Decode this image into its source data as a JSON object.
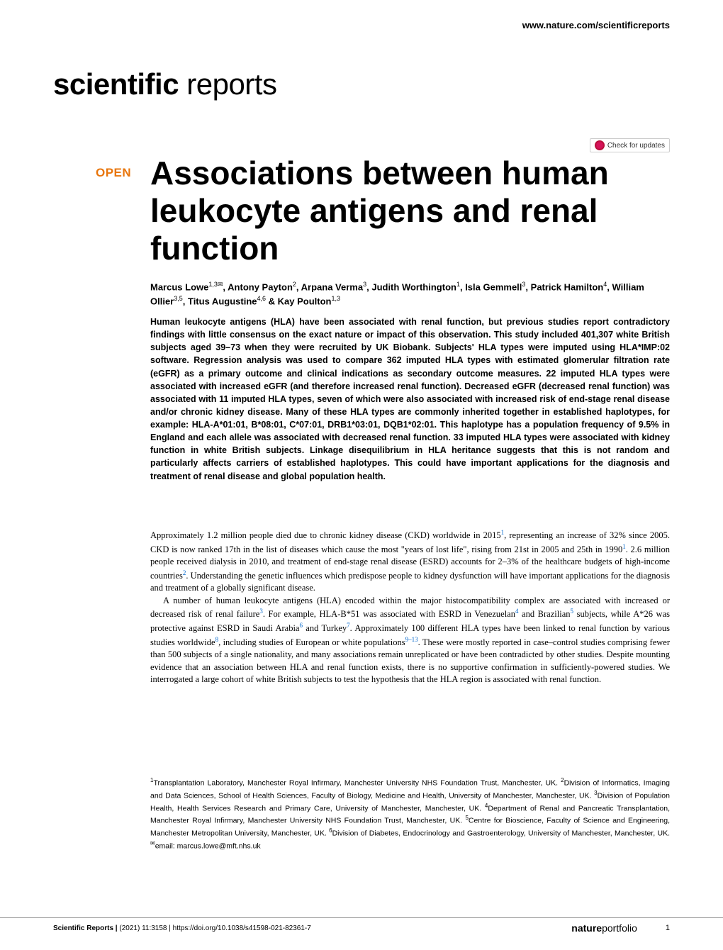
{
  "header": {
    "url": "www.nature.com/scientificreports"
  },
  "journal_logo": {
    "bold_part": "scientific",
    "light_part": " reports"
  },
  "check_updates_label": "Check for updates",
  "open_badge": "OPEN",
  "title": "Associations between human leukocyte antigens and renal function",
  "authors_html": "Marcus Lowe<sup>1,3✉</sup>, Antony Payton<sup>2</sup>, Arpana Verma<sup>3</sup>, Judith Worthington<sup>1</sup>, Isla Gemmell<sup>3</sup>, Patrick Hamilton<sup>4</sup>, William Ollier<sup>3,5</sup>, Titus Augustine<sup>4,6</sup> & Kay Poulton<sup>1,3</sup>",
  "abstract": "Human leukocyte antigens (HLA) have been associated with renal function, but previous studies report contradictory findings with little consensus on the exact nature or impact of this observation. This study included 401,307 white British subjects aged 39–73 when they were recruited by UK Biobank. Subjects' HLA types were imputed using HLA*IMP:02 software. Regression analysis was used to compare 362 imputed HLA types with estimated glomerular filtration rate (eGFR) as a primary outcome and clinical indications as secondary outcome measures. 22 imputed HLA types were associated with increased eGFR (and therefore increased renal function). Decreased eGFR (decreased renal function) was associated with 11 imputed HLA types, seven of which were also associated with increased risk of end-stage renal disease and/or chronic kidney disease. Many of these HLA types are commonly inherited together in established haplotypes, for example: HLA-A*01:01, B*08:01, C*07:01, DRB1*03:01, DQB1*02:01. This haplotype has a population frequency of 9.5% in England and each allele was associated with decreased renal function. 33 imputed HLA types were associated with kidney function in white British subjects. Linkage disequilibrium in HLA heritance suggests that this is not random and particularly affects carriers of established haplotypes. This could have important applications for the diagnosis and treatment of renal disease and global population health.",
  "body_paragraphs": [
    "Approximately 1.2 million people died due to chronic kidney disease (CKD) worldwide in 2015<sup class=\"ref-sup\">1</sup>, representing an increase of 32% since 2005. CKD is now ranked 17th in the list of diseases which cause the most \"years of lost life\", rising from 21st in 2005 and 25th in 1990<sup class=\"ref-sup\">1</sup>. 2.6 million people received dialysis in 2010, and treatment of end-stage renal disease (ESRD) accounts for 2–3% of the healthcare budgets of high-income countries<sup class=\"ref-sup\">2</sup>. Understanding the genetic influences which predispose people to kidney dysfunction will have important applications for the diagnosis and treatment of a globally significant disease.",
    "A number of human leukocyte antigens (HLA) encoded within the major histocompatibility complex are associated with increased or decreased risk of renal failure<sup class=\"ref-sup\">3</sup>. For example, HLA-B*51 was associated with ESRD in Venezuelan<sup class=\"ref-sup\">4</sup> and Brazilian<sup class=\"ref-sup\">5</sup> subjects, while A*26 was protective against ESRD in Saudi Arabia<sup class=\"ref-sup\">6</sup> and Turkey<sup class=\"ref-sup\">7</sup>. Approximately 100 different HLA types have been linked to renal function by various studies worldwide<sup class=\"ref-sup\">8</sup>, including studies of European or white populations<sup class=\"ref-sup\">9–13</sup>. These were mostly reported in case–control studies comprising fewer than 500 subjects of a single nationality, and many associations remain unreplicated or have been contradicted by other studies. Despite mounting evidence that an association between HLA and renal function exists, there is no supportive confirmation in sufficiently-powered studies. We interrogated a large cohort of white British subjects to test the hypothesis that the HLA region is associated with renal function."
  ],
  "affiliations": "<sup>1</sup>Transplantation Laboratory, Manchester Royal Infirmary, Manchester University NHS Foundation Trust, Manchester, UK. <sup>2</sup>Division of Informatics, Imaging and Data Sciences, School of Health Sciences, Faculty of Biology, Medicine and Health, University of Manchester, Manchester, UK. <sup>3</sup>Division of Population Health, Health Services Research and Primary Care, University of Manchester, Manchester, UK. <sup>4</sup>Department of Renal and Pancreatic Transplantation, Manchester Royal Infirmary, Manchester University NHS Foundation Trust, Manchester, UK. <sup>5</sup>Centre for Bioscience, Faculty of Science and Engineering, Manchester Metropolitan University, Manchester, UK. <sup>6</sup>Division of Diabetes, Endocrinology and Gastroenterology, University of Manchester, Manchester, UK. <sup>✉</sup>email: marcus.lowe@mft.nhs.uk",
  "footer": {
    "journal": "Scientific Reports |",
    "citation": "        (2021) 11:3158",
    "doi": "| https://doi.org/10.1038/s41598-021-82361-7",
    "portfolio_bold": "nature",
    "portfolio_light": "portfolio",
    "page_num": "1"
  },
  "colors": {
    "open_badge": "#e8750b",
    "ref_link": "#0066cc",
    "text": "#000000",
    "background": "#ffffff"
  },
  "typography": {
    "title_fontsize": 46,
    "journal_logo_fontsize": 42,
    "authors_fontsize": 13,
    "abstract_fontsize": 12.5,
    "body_fontsize": 12.5,
    "affiliations_fontsize": 10.5,
    "footer_fontsize": 10
  }
}
